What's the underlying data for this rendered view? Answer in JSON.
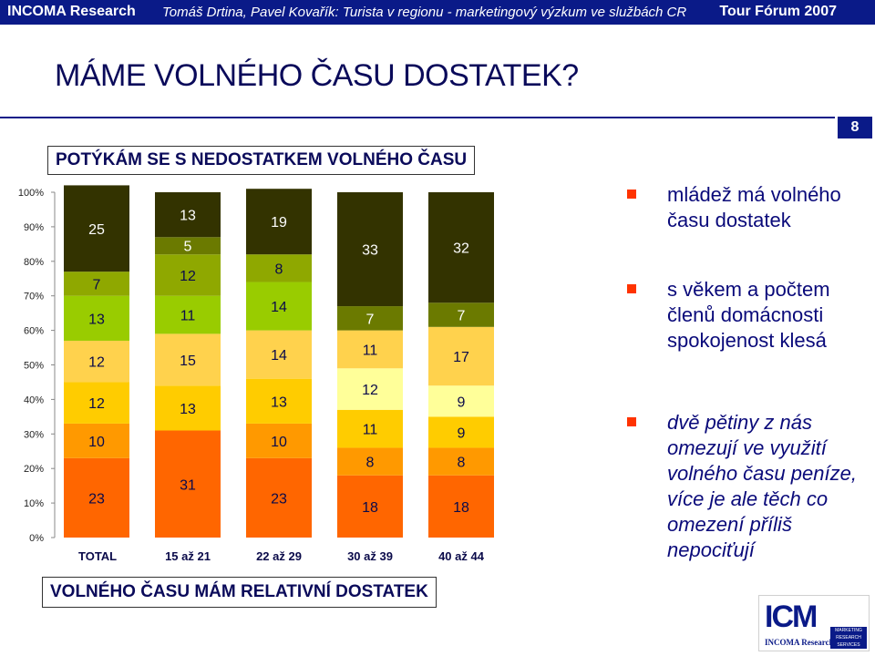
{
  "header": {
    "left": "INCOMA Research",
    "middle": "Tomáš Drtina, Pavel Kovařík: Turista v regionu - marketingový výzkum ve službách CR",
    "right": "Tour Fórum 2007"
  },
  "slide": {
    "title": "MÁME VOLNÉHO ČASU DOSTATEK?",
    "number": "8",
    "top_label": "POTÝKÁM SE S NEDOSTATKEM VOLNÉHO ČASU",
    "bottom_label": "VOLNÉHO ČASU MÁM RELATIVNÍ DOSTATEK"
  },
  "chart_data": {
    "type": "bar",
    "stacked": true,
    "percent": true,
    "categories": [
      "TOTAL",
      "15 až 21",
      "22 až 29",
      "30 až 39",
      "40 až 44"
    ],
    "series": [
      {
        "values": [
          23,
          31,
          23,
          18,
          18
        ],
        "color": "#ff6600"
      },
      {
        "values": [
          10,
          0,
          10,
          8,
          8
        ],
        "color": "#ff9900"
      },
      {
        "values": [
          12,
          13,
          13,
          11,
          9
        ],
        "color": "#ffcc00"
      },
      {
        "values": [
          0,
          0,
          0,
          12,
          9
        ],
        "color": "#ffff99"
      },
      {
        "values": [
          12,
          15,
          14,
          11,
          17
        ],
        "color": "#ffd24d"
      },
      {
        "values": [
          13,
          11,
          14,
          0,
          0
        ],
        "color": "#99cc00"
      },
      {
        "values": [
          7,
          12,
          8,
          0,
          0
        ],
        "color": "#8fa800"
      },
      {
        "values": [
          0,
          5,
          0,
          7,
          7
        ],
        "color": "#6b7a00"
      },
      {
        "values": [
          25,
          13,
          19,
          33,
          32
        ],
        "color": "#333300"
      }
    ],
    "y_ticks": [
      "0%",
      "10%",
      "20%",
      "30%",
      "40%",
      "50%",
      "60%",
      "70%",
      "80%",
      "90%",
      "100%"
    ],
    "ylim": [
      0,
      100
    ]
  },
  "bullets": [
    "mládež má volného času dostatek",
    "s věkem a počtem členů domácnosti spokojenost klesá",
    "dvě pětiny z nás omezují ve využití volného času peníze, více je ale těch co omezení příliš nepociťují"
  ],
  "logo": {
    "mark": "ICM",
    "name": "INCOMA Research",
    "side": "MARKETING RESEARCH SERVICES"
  }
}
